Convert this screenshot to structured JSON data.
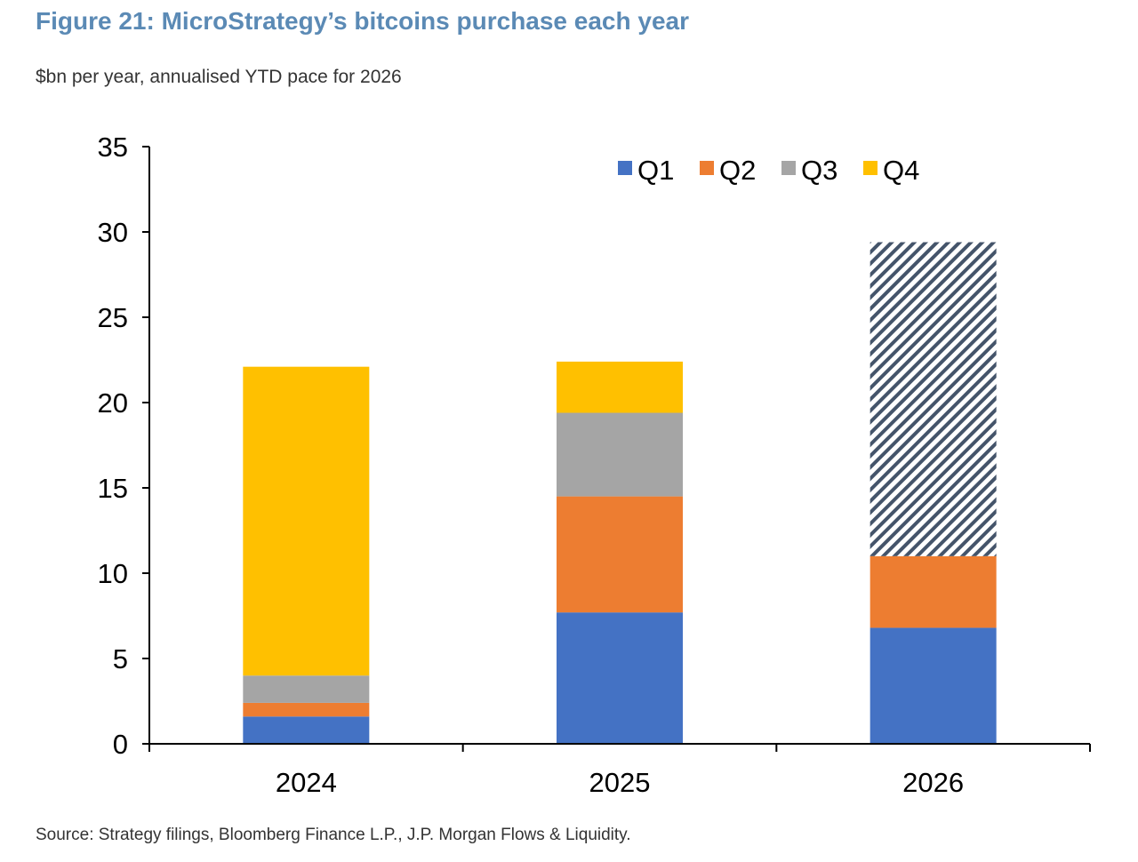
{
  "figure": {
    "title": "Figure 21: MicroStrategy’s bitcoins purchase each year",
    "subtitle": "$bn per year, annualised YTD pace for 2026",
    "source": "Source: Strategy filings, Bloomberg Finance L.P., J.P. Morgan Flows & Liquidity."
  },
  "chart_data": {
    "type": "bar",
    "stacked": true,
    "title": "",
    "xlabel": "",
    "ylabel": "",
    "categories": [
      "2024",
      "2025",
      "2026"
    ],
    "ylim": [
      0,
      35
    ],
    "yticks": [
      0,
      5,
      10,
      15,
      20,
      25,
      30,
      35
    ],
    "grid": false,
    "legend_position": "top-right",
    "series": [
      {
        "name": "Q1",
        "color": "#4472c4",
        "values": [
          1.6,
          7.7,
          6.8
        ]
      },
      {
        "name": "Q2",
        "color": "#ed7d31",
        "values": [
          0.8,
          6.8,
          4.2
        ]
      },
      {
        "name": "Q3",
        "color": "#a5a5a5",
        "values": [
          1.6,
          4.9,
          null
        ]
      },
      {
        "name": "Q4",
        "color": "#ffc000",
        "values": [
          18.1,
          3.0,
          null
        ]
      }
    ],
    "annualised_pace": {
      "category": "2026",
      "total": 29.4,
      "pattern": "diagonal-hatch",
      "color": "#44546a"
    }
  }
}
